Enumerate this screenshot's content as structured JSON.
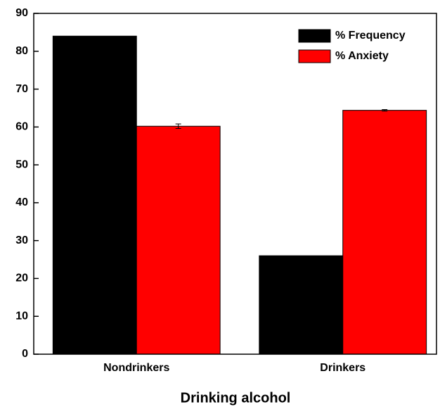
{
  "chart_data": {
    "type": "bar",
    "x_label": "Drinking alcohol",
    "categories": [
      "Nondrinkers",
      "Drinkers"
    ],
    "series": [
      {
        "name": "% Frequency",
        "color": "#000000",
        "values": [
          84,
          26
        ]
      },
      {
        "name": "% Anxiety",
        "color": "#ff0000",
        "values": [
          60.2,
          64.4
        ],
        "errors": [
          0.6,
          0.2
        ]
      }
    ],
    "ylim": [
      0,
      90
    ],
    "yticks": [
      0,
      10,
      20,
      30,
      40,
      50,
      60,
      70,
      80,
      90
    ],
    "legend": "upper right"
  }
}
